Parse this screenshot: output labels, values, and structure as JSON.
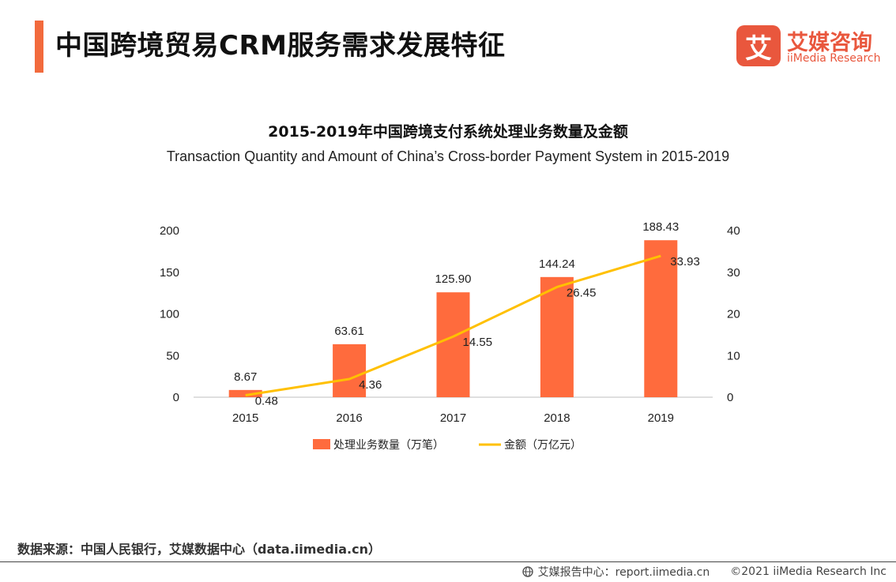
{
  "header": {
    "title": "中国跨境贸易CRM服务需求发展特征",
    "accent_color": "#f26a3d",
    "logo_mark": "艾",
    "logo_cn": "艾媒咨询",
    "logo_en": "iiMedia Research"
  },
  "chart_data": {
    "type": "bar",
    "title": "2015-2019年中国跨境支付系统处理业务数量及金额",
    "subtitle": "Transaction Quantity and Amount of China’s Cross-border Payment System in 2015-2019",
    "categories": [
      "2015",
      "2016",
      "2017",
      "2018",
      "2019"
    ],
    "series": [
      {
        "name": "处理业务数量（万笔）",
        "type": "bar",
        "axis": "left",
        "color": "#ff6b3d",
        "values": [
          8.67,
          63.61,
          125.9,
          144.24,
          188.43
        ],
        "labels": [
          "8.67",
          "63.61",
          "125.90",
          "144.24",
          "188.43"
        ]
      },
      {
        "name": "金额（万亿元）",
        "type": "line",
        "axis": "right",
        "color": "#ffc000",
        "values": [
          0.48,
          4.36,
          14.55,
          26.45,
          33.93
        ],
        "labels": [
          "0.48",
          "4.36",
          "14.55",
          "26.45",
          "33.93"
        ]
      }
    ],
    "y_left": {
      "min": 0,
      "max": 200,
      "ticks": [
        "0",
        "50",
        "100",
        "150",
        "200"
      ]
    },
    "y_right": {
      "min": 0,
      "max": 40,
      "ticks": [
        "0",
        "10",
        "20",
        "30",
        "40"
      ]
    },
    "grid": false,
    "legend_position": "bottom"
  },
  "footer": {
    "source": "数据来源：中国人民银行，艾媒数据中心（data.iimedia.cn）",
    "report_site": "艾媒报告中心：report.iimedia.cn",
    "copyright": "©2021  iiMedia Research  Inc"
  }
}
